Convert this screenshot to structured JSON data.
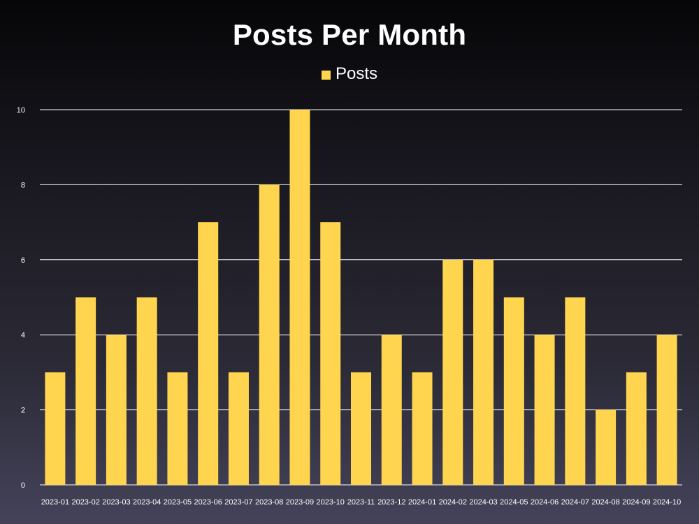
{
  "chart_data": {
    "type": "bar",
    "title": "Posts Per Month",
    "xlabel": "",
    "ylabel": "",
    "ylim": [
      0,
      10
    ],
    "yticks": [
      "0",
      "2",
      "4",
      "6",
      "8",
      "10"
    ],
    "grid": true,
    "legend_position": "top-center",
    "categories": [
      "2023-01",
      "2023-02",
      "2023-03",
      "2023-04",
      "2023-05",
      "2023-06",
      "2023-07",
      "2023-08",
      "2023-09",
      "2023-10",
      "2023-11",
      "2023-12",
      "2024-01",
      "2024-02",
      "2024-03",
      "2024-05",
      "2024-06",
      "2024-07",
      "2024-08",
      "2024-09",
      "2024-10"
    ],
    "series": [
      {
        "name": "Posts",
        "color": "#ffd54f",
        "values": [
          3,
          5,
          4,
          5,
          3,
          7,
          3,
          8,
          10,
          7,
          3,
          4,
          3,
          6,
          6,
          5,
          4,
          5,
          2,
          3,
          4
        ]
      }
    ]
  },
  "colors": {
    "bar": "#ffd54f",
    "grid": "#ffffff",
    "text": "#ffffff"
  }
}
